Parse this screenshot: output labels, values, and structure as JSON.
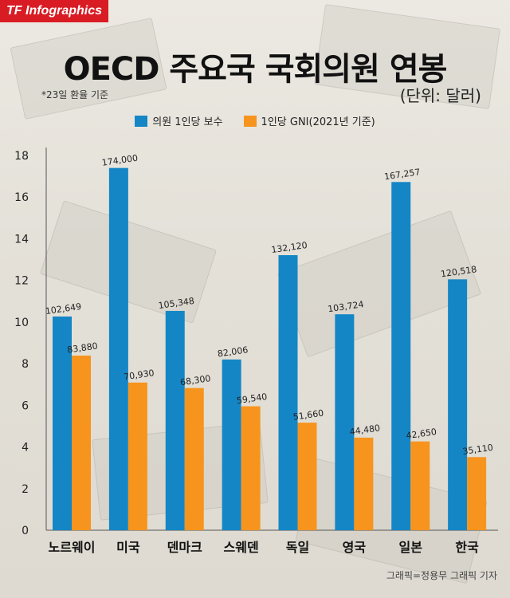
{
  "brand": "TF Infographics",
  "title": "OECD 주요국 국회의원 연봉",
  "note": "*23일 환율 기준",
  "unit": "(단위:  달러)",
  "credit": "그래픽=정용무 그래픽 기자",
  "colors": {
    "series1": "#1486c6",
    "series2": "#f7941d"
  },
  "chart_data": {
    "type": "bar",
    "title": "OECD 주요국 국회의원 연봉",
    "xlabel": "",
    "ylabel": "",
    "ylim": [
      0,
      18
    ],
    "yticks": [
      "0",
      "2",
      "4",
      "6",
      "8",
      "10",
      "12",
      "14",
      "16",
      "18"
    ],
    "categories": [
      "노르웨이",
      "미국",
      "덴마크",
      "스웨덴",
      "독일",
      "영국",
      "일본",
      "한국"
    ],
    "series": [
      {
        "name": "의원 1인당 보수",
        "values": [
          102649,
          174000,
          105348,
          82006,
          132120,
          103724,
          167257,
          120518
        ],
        "labels": [
          "102,649",
          "174,000",
          "105,348",
          "82,006",
          "132,120",
          "103,724",
          "167,257",
          "120,518"
        ]
      },
      {
        "name": "1인당 GNI(2021년 기준)",
        "values": [
          83880,
          70930,
          68300,
          59540,
          51660,
          44480,
          42650,
          35110
        ],
        "labels": [
          "83,880",
          "70,930",
          "68,300",
          "59,540",
          "51,660",
          "44,480",
          "42,650",
          "35,110"
        ]
      }
    ]
  }
}
